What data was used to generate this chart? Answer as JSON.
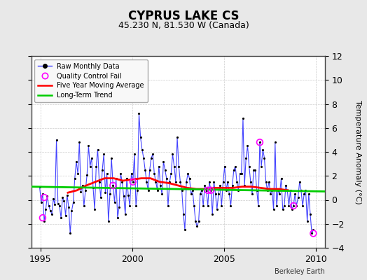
{
  "title": "CYPRUS LAKE CS",
  "subtitle": "45.230 N, 81.530 W (Canada)",
  "ylabel": "Temperature Anomaly (°C)",
  "credit": "Berkeley Earth",
  "ylim": [
    -4,
    12
  ],
  "yticks": [
    -4,
    -2,
    0,
    2,
    4,
    6,
    8,
    10,
    12
  ],
  "xlim": [
    1994.5,
    2010.5
  ],
  "xticks": [
    1995,
    2000,
    2005,
    2010
  ],
  "fig_bg_color": "#e8e8e8",
  "plot_bg_color": "#ffffff",
  "raw_line_color": "#4444ff",
  "raw_dot_color": "#000000",
  "moving_avg_color": "#ff0000",
  "trend_color": "#00cc00",
  "qc_fail_color": "#ff00ff",
  "raw_data_times": [
    1994.958,
    1995.042,
    1995.125,
    1995.208,
    1995.292,
    1995.375,
    1995.458,
    1995.542,
    1995.625,
    1995.708,
    1995.792,
    1995.875,
    1995.958,
    1996.042,
    1996.125,
    1996.208,
    1996.292,
    1996.375,
    1996.458,
    1996.542,
    1996.625,
    1996.708,
    1996.792,
    1996.875,
    1996.958,
    1997.042,
    1997.125,
    1997.208,
    1997.292,
    1997.375,
    1997.458,
    1997.542,
    1997.625,
    1997.708,
    1997.792,
    1997.875,
    1997.958,
    1998.042,
    1998.125,
    1998.208,
    1998.292,
    1998.375,
    1998.458,
    1998.542,
    1998.625,
    1998.708,
    1998.792,
    1998.875,
    1998.958,
    1999.042,
    1999.125,
    1999.208,
    1999.292,
    1999.375,
    1999.458,
    1999.542,
    1999.625,
    1999.708,
    1999.792,
    1999.875,
    1999.958,
    2000.042,
    2000.125,
    2000.208,
    2000.292,
    2000.375,
    2000.458,
    2000.542,
    2000.625,
    2000.708,
    2000.792,
    2000.875,
    2000.958,
    2001.042,
    2001.125,
    2001.208,
    2001.292,
    2001.375,
    2001.458,
    2001.542,
    2001.625,
    2001.708,
    2001.792,
    2001.875,
    2001.958,
    2002.042,
    2002.125,
    2002.208,
    2002.292,
    2002.375,
    2002.458,
    2002.542,
    2002.625,
    2002.708,
    2002.792,
    2002.875,
    2002.958,
    2003.042,
    2003.125,
    2003.208,
    2003.292,
    2003.375,
    2003.458,
    2003.542,
    2003.625,
    2003.708,
    2003.792,
    2003.875,
    2003.958,
    2004.042,
    2004.125,
    2004.208,
    2004.292,
    2004.375,
    2004.458,
    2004.542,
    2004.625,
    2004.708,
    2004.792,
    2004.875,
    2004.958,
    2005.042,
    2005.125,
    2005.208,
    2005.292,
    2005.375,
    2005.458,
    2005.542,
    2005.625,
    2005.708,
    2005.792,
    2005.875,
    2005.958,
    2006.042,
    2006.125,
    2006.208,
    2006.292,
    2006.375,
    2006.458,
    2006.542,
    2006.625,
    2006.708,
    2006.792,
    2006.875,
    2006.958,
    2007.042,
    2007.125,
    2007.208,
    2007.292,
    2007.375,
    2007.458,
    2007.542,
    2007.625,
    2007.708,
    2007.792,
    2007.875,
    2007.958,
    2008.042,
    2008.125,
    2008.208,
    2008.292,
    2008.375,
    2008.458,
    2008.542,
    2008.625,
    2008.708,
    2008.792,
    2008.875,
    2008.958,
    2009.042,
    2009.125,
    2009.208,
    2009.292,
    2009.375,
    2009.458,
    2009.542,
    2009.625,
    2009.708,
    2009.792,
    2009.875
  ],
  "raw_data_values": [
    1.1,
    -0.2,
    0.5,
    -1.8,
    -0.8,
    0.3,
    -0.5,
    -0.9,
    -1.2,
    0.1,
    -0.4,
    5.0,
    -0.3,
    -0.5,
    -1.5,
    0.2,
    -0.1,
    -1.3,
    0.4,
    -0.6,
    -2.8,
    -0.9,
    -0.2,
    1.8,
    3.2,
    2.2,
    4.8,
    0.7,
    1.2,
    -0.5,
    0.8,
    2.1,
    4.5,
    2.8,
    3.5,
    1.0,
    -0.8,
    2.8,
    4.2,
    1.5,
    0.2,
    2.5,
    3.8,
    0.6,
    2.2,
    -1.8,
    0.5,
    3.5,
    1.2,
    -0.2,
    1.8,
    -1.5,
    -0.6,
    2.2,
    1.5,
    0.3,
    -1.2,
    1.8,
    0.4,
    -0.5,
    2.2,
    1.5,
    3.8,
    -0.5,
    0.8,
    7.2,
    5.2,
    4.2,
    3.5,
    2.5,
    1.5,
    0.8,
    2.5,
    3.5,
    3.8,
    2.2,
    1.5,
    0.8,
    2.8,
    1.2,
    0.5,
    3.2,
    2.5,
    1.8,
    -0.5,
    1.5,
    2.2,
    3.8,
    2.8,
    1.5,
    5.2,
    2.8,
    1.5,
    0.8,
    -1.2,
    -2.5,
    1.5,
    2.2,
    1.8,
    0.5,
    0.8,
    -0.5,
    -1.8,
    -2.2,
    -1.8,
    0.5,
    0.8,
    -0.5,
    1.2,
    0.8,
    -0.5,
    1.5,
    0.8,
    -1.2,
    1.5,
    0.5,
    -0.8,
    0.5,
    1.2,
    -0.5,
    1.5,
    2.8,
    0.8,
    1.5,
    0.5,
    -0.5,
    1.2,
    2.5,
    2.8,
    1.5,
    0.8,
    2.2,
    2.2,
    6.8,
    1.2,
    3.5,
    4.5,
    2.8,
    1.5,
    0.5,
    2.5,
    2.5,
    0.8,
    -0.5,
    4.8,
    2.8,
    4.2,
    3.5,
    1.5,
    0.8,
    1.5,
    0.5,
    0.8,
    -0.8,
    4.8,
    -0.5,
    0.8,
    0.5,
    1.8,
    -0.8,
    -0.5,
    1.2,
    0.8,
    -0.5,
    0.8,
    -0.8,
    -0.5,
    0.5,
    -0.5,
    0.2,
    1.5,
    0.8,
    -0.5,
    0.5,
    0.8,
    -1.8,
    0.5,
    -1.2,
    -2.8,
    -2.5
  ],
  "qc_fail_times": [
    1995.125,
    1995.208,
    1998.958,
    2000.042,
    2004.125,
    2004.292,
    2006.958,
    2008.792,
    2009.875
  ],
  "qc_fail_values": [
    -1.5,
    0.2,
    1.2,
    1.5,
    0.8,
    0.8,
    4.8,
    -0.5,
    -2.8
  ],
  "moving_avg_times": [
    1996.5,
    1997.0,
    1997.5,
    1998.0,
    1998.5,
    1999.0,
    1999.5,
    2000.0,
    2000.5,
    2001.0,
    2001.5,
    2002.0,
    2002.5,
    2003.0,
    2003.5,
    2004.0,
    2004.5,
    2005.0,
    2005.5,
    2006.0,
    2006.5,
    2007.0,
    2007.5,
    2008.0,
    2008.5
  ],
  "moving_avg_values": [
    0.6,
    0.8,
    1.2,
    1.5,
    1.8,
    1.8,
    1.6,
    1.7,
    1.8,
    1.8,
    1.5,
    1.4,
    1.2,
    1.0,
    0.9,
    0.9,
    1.0,
    1.0,
    1.0,
    1.1,
    1.1,
    1.0,
    0.9,
    0.9,
    0.8
  ],
  "trend_times": [
    1994.5,
    2010.5
  ],
  "trend_values": [
    1.1,
    0.7
  ],
  "grid_color": "#cccccc",
  "legend_bg": "#f8f8f8",
  "title_fontsize": 12,
  "subtitle_fontsize": 9,
  "tick_fontsize": 9,
  "ylabel_fontsize": 8,
  "legend_fontsize": 7,
  "credit_fontsize": 7
}
